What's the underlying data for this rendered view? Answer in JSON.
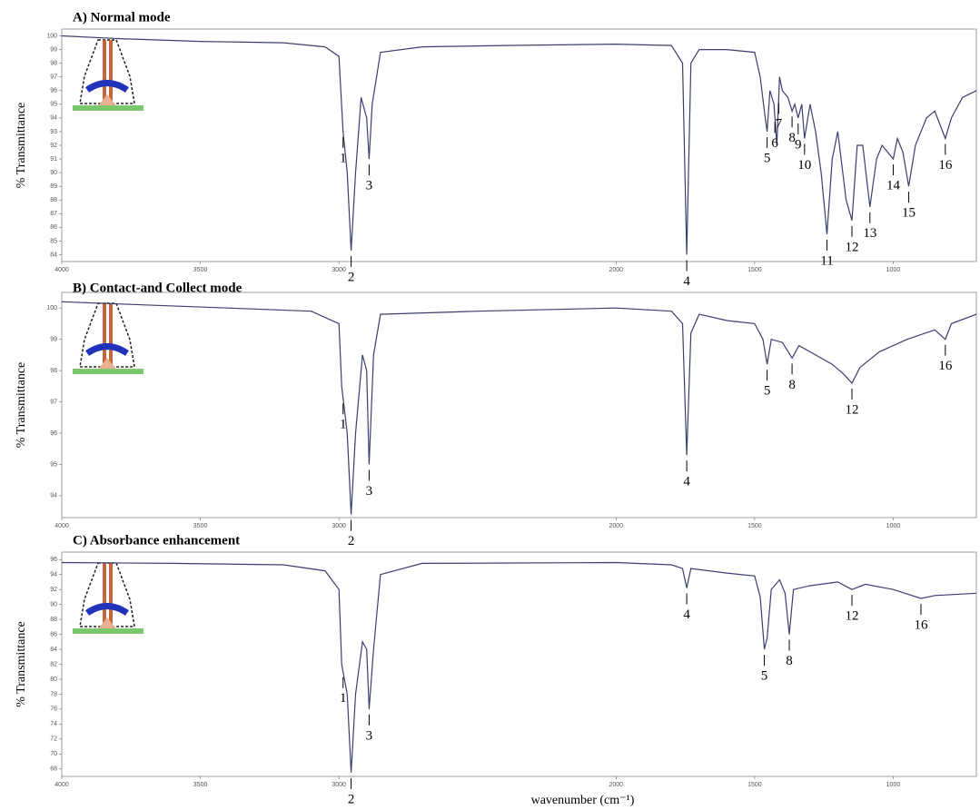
{
  "chart_data": [
    {
      "type": "line",
      "title": "A) Normal mode",
      "y_label": "% Transmittance",
      "color": "#3a3f6e",
      "xlim": [
        4000,
        700
      ],
      "xticks": [
        4000,
        3500,
        3000,
        2000,
        1500,
        1000
      ],
      "ylim": [
        83.5,
        100.5
      ],
      "yticks": [
        84,
        85,
        86,
        87,
        88,
        89,
        90,
        91,
        92,
        93,
        94,
        95,
        96,
        97,
        98,
        99,
        100
      ],
      "x": [
        4000,
        3800,
        3500,
        3200,
        3050,
        3000,
        2985,
        2970,
        2956,
        2940,
        2920,
        2900,
        2891,
        2880,
        2850,
        2700,
        2400,
        2000,
        1800,
        1760,
        1745,
        1730,
        1700,
        1600,
        1500,
        1480,
        1465,
        1455,
        1445,
        1430,
        1420,
        1410,
        1400,
        1380,
        1365,
        1355,
        1343,
        1330,
        1320,
        1300,
        1280,
        1260,
        1239,
        1220,
        1200,
        1170,
        1149,
        1130,
        1110,
        1084,
        1060,
        1040,
        1000,
        985,
        965,
        944,
        920,
        880,
        850,
        812,
        790,
        750,
        700
      ],
      "values": [
        100,
        99.8,
        99.6,
        99.5,
        99.2,
        98.5,
        93,
        90,
        84.3,
        90,
        95.5,
        94,
        91,
        95,
        98.8,
        99.2,
        99.3,
        99.4,
        99.3,
        98,
        84,
        98,
        99,
        99,
        98.8,
        97,
        94.5,
        93,
        96,
        95,
        92,
        97,
        96,
        95.5,
        94.5,
        95,
        94,
        95,
        92.5,
        95,
        93,
        90,
        85.5,
        91,
        93,
        88,
        86.5,
        92,
        92,
        87.5,
        91,
        92,
        91,
        92.5,
        91.5,
        89,
        92,
        94,
        94.5,
        92.5,
        94,
        95.5,
        96
      ],
      "peaks": [
        {
          "label": "1",
          "x": 2985
        },
        {
          "label": "2",
          "x": 2956
        },
        {
          "label": "3",
          "x": 2891
        },
        {
          "label": "4",
          "x": 1745
        },
        {
          "label": "5",
          "x": 1455
        },
        {
          "label": "6",
          "x": 1427
        },
        {
          "label": "7",
          "x": 1413
        },
        {
          "label": "8",
          "x": 1365
        },
        {
          "label": "9",
          "x": 1343
        },
        {
          "label": "10",
          "x": 1320
        },
        {
          "label": "11",
          "x": 1239
        },
        {
          "label": "12",
          "x": 1149
        },
        {
          "label": "13",
          "x": 1084
        },
        {
          "label": "14",
          "x": 1000
        },
        {
          "label": "15",
          "x": 944
        },
        {
          "label": "16",
          "x": 812
        }
      ]
    },
    {
      "type": "line",
      "title": "B) Contact-and Collect mode",
      "y_label": "% Transmittance",
      "color": "#3a3f6e",
      "xlim": [
        4000,
        700
      ],
      "xticks": [
        4000,
        3500,
        3000,
        2000,
        1500,
        1000
      ],
      "ylim": [
        93.3,
        100.5
      ],
      "yticks": [
        94,
        95,
        96,
        97,
        98,
        99,
        100
      ],
      "x": [
        4000,
        3700,
        3400,
        3100,
        3000,
        2990,
        2970,
        2956,
        2940,
        2915,
        2900,
        2891,
        2875,
        2850,
        2500,
        2000,
        1800,
        1760,
        1745,
        1730,
        1700,
        1600,
        1500,
        1470,
        1455,
        1440,
        1400,
        1365,
        1340,
        1280,
        1220,
        1180,
        1149,
        1120,
        1050,
        950,
        850,
        812,
        790,
        700
      ],
      "values": [
        100.2,
        100.1,
        100,
        99.9,
        99.5,
        97.5,
        96,
        93.4,
        96,
        98.5,
        98,
        95,
        98.5,
        99.8,
        99.9,
        100,
        99.9,
        99.5,
        95.3,
        99.2,
        99.8,
        99.6,
        99.5,
        99,
        98.2,
        99,
        98.9,
        98.4,
        98.8,
        98.5,
        98.2,
        97.9,
        97.6,
        98.1,
        98.6,
        99,
        99.3,
        99,
        99.5,
        99.8
      ],
      "peaks": [
        {
          "label": "1",
          "x": 2985
        },
        {
          "label": "2",
          "x": 2956
        },
        {
          "label": "3",
          "x": 2891
        },
        {
          "label": "4",
          "x": 1745
        },
        {
          "label": "5",
          "x": 1455
        },
        {
          "label": "8",
          "x": 1365
        },
        {
          "label": "12",
          "x": 1149
        },
        {
          "label": "16",
          "x": 812
        }
      ]
    },
    {
      "type": "line",
      "title": "C) Absorbance enhancement",
      "y_label": "% Transmittance",
      "x_label": "wavenumber (cm⁻¹)",
      "color": "#3a3f6e",
      "xlim": [
        4000,
        700
      ],
      "xticks": [
        4000,
        3500,
        3000,
        2000,
        1500,
        1000
      ],
      "ylim": [
        67,
        97
      ],
      "yticks": [
        68,
        70,
        72,
        74,
        76,
        78,
        80,
        82,
        84,
        86,
        88,
        90,
        92,
        94,
        96
      ],
      "x": [
        4000,
        3600,
        3200,
        3050,
        3000,
        2990,
        2970,
        2956,
        2940,
        2915,
        2900,
        2891,
        2875,
        2850,
        2700,
        2000,
        1800,
        1760,
        1745,
        1730,
        1600,
        1500,
        1480,
        1465,
        1455,
        1440,
        1410,
        1390,
        1375,
        1360,
        1300,
        1200,
        1149,
        1100,
        1000,
        900,
        850,
        700
      ],
      "values": [
        95.6,
        95.5,
        95.3,
        94.5,
        92,
        82,
        78,
        67.5,
        78,
        85,
        84,
        76,
        84,
        94,
        95.5,
        95.6,
        95.3,
        94.8,
        92.2,
        94.8,
        94.2,
        93.8,
        91,
        84,
        85.5,
        92,
        93.3,
        91.5,
        86,
        92,
        92.5,
        93,
        92,
        92.7,
        92,
        90.8,
        91.2,
        91.5
      ],
      "peaks": [
        {
          "label": "1",
          "x": 2985
        },
        {
          "label": "2",
          "x": 2956
        },
        {
          "label": "3",
          "x": 2891
        },
        {
          "label": "4",
          "x": 1745
        },
        {
          "label": "5",
          "x": 1465
        },
        {
          "label": "8",
          "x": 1375
        },
        {
          "label": "12",
          "x": 1149
        },
        {
          "label": "16",
          "x": 900
        }
      ]
    }
  ]
}
